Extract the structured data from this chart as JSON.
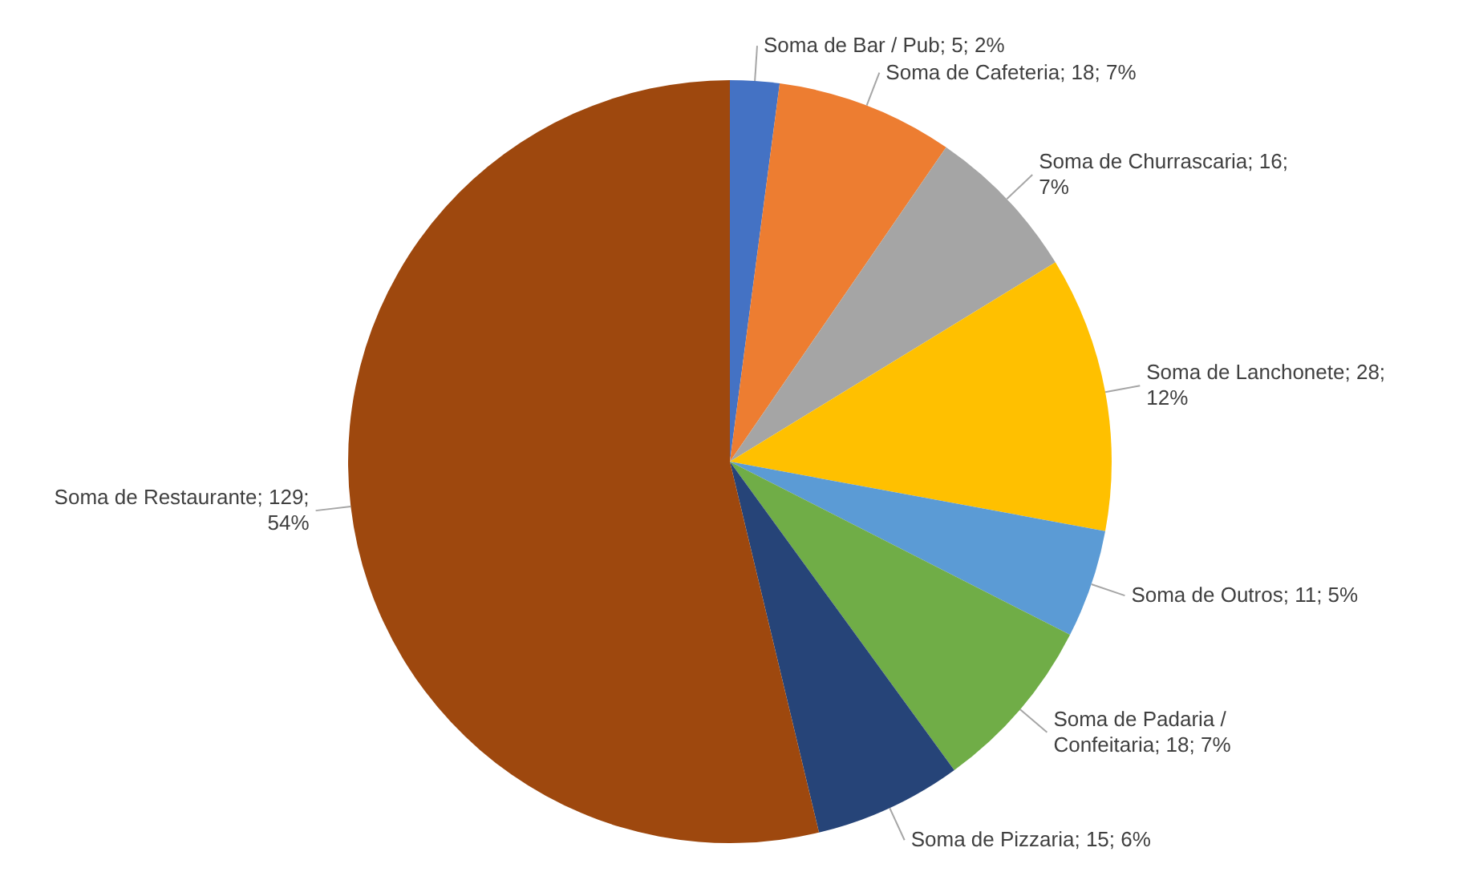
{
  "chart_data": {
    "type": "pie",
    "categories": [
      "Soma de Bar / Pub",
      "Soma de Cafeteria",
      "Soma de Churrascaria",
      "Soma de Lanchonete",
      "Soma de Outros",
      "Soma de Padaria / Confeitaria",
      "Soma de Pizzaria",
      "Soma de Restaurante"
    ],
    "values": [
      5,
      18,
      16,
      28,
      11,
      18,
      15,
      129
    ],
    "value_labels": [
      "5; 2%",
      "18; 7%",
      "16; 7%",
      "28; 12%",
      "11; 5%",
      "18; 7%",
      "15; 6%",
      "129; 54%"
    ],
    "colors": [
      "#4472c4",
      "#ed7d31",
      "#a5a5a5",
      "#ffc000",
      "#5b9bd5",
      "#70ad47",
      "#264478",
      "#9e480e"
    ]
  }
}
